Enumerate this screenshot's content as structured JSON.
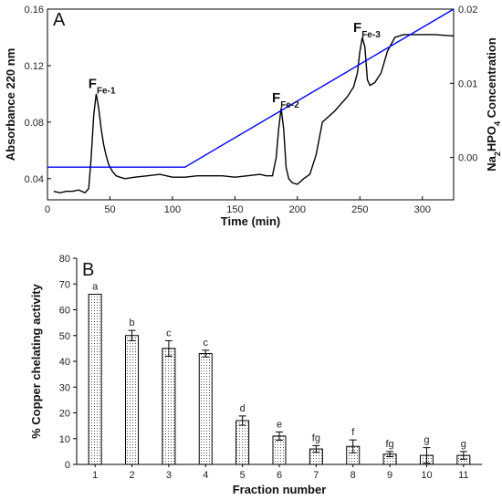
{
  "chart_data": [
    {
      "type": "line",
      "panel_label": "A",
      "xlabel": "Time (min)",
      "ylabel": "Absorbance 220 nm",
      "y2label_parts": [
        "Na",
        "2",
        "HPO",
        "4",
        " Concentration"
      ],
      "xlim": [
        0,
        325
      ],
      "ylim": [
        0.025,
        0.16
      ],
      "y2lim": [
        -0.0057,
        0.02
      ],
      "xticks": [
        0,
        50,
        100,
        150,
        200,
        250,
        300
      ],
      "yticks": [
        0.04,
        0.08,
        0.12,
        0.16
      ],
      "ytick_labels": [
        "0.04",
        "0.08",
        "0.12",
        "0.16"
      ],
      "y2ticks": [
        0.0,
        0.01,
        0.02
      ],
      "y2tick_labels": [
        "0.00",
        "0.01",
        "0.02"
      ],
      "colors": {
        "absorbance": "#000000",
        "gradient": "#0000ff"
      },
      "series": [
        {
          "axis": "left",
          "x": [
            5,
            10,
            15,
            20,
            25,
            30,
            33,
            35,
            37,
            39,
            41,
            43,
            45,
            47,
            49,
            52,
            55,
            58,
            62,
            70,
            80,
            90,
            100,
            110,
            120,
            130,
            140,
            150,
            160,
            170,
            175,
            180,
            183,
            185,
            187,
            189,
            191,
            193,
            196,
            200,
            205,
            210,
            215,
            220,
            230,
            240,
            245,
            248,
            250,
            252,
            254,
            256,
            258,
            262,
            267,
            272,
            278,
            285,
            295,
            310,
            325
          ],
          "y": [
            0.031,
            0.03,
            0.031,
            0.031,
            0.032,
            0.03,
            0.033,
            0.055,
            0.085,
            0.1,
            0.09,
            0.075,
            0.064,
            0.056,
            0.05,
            0.045,
            0.042,
            0.041,
            0.04,
            0.041,
            0.042,
            0.043,
            0.041,
            0.041,
            0.042,
            0.042,
            0.042,
            0.041,
            0.042,
            0.043,
            0.042,
            0.042,
            0.055,
            0.075,
            0.09,
            0.075,
            0.048,
            0.04,
            0.037,
            0.036,
            0.04,
            0.043,
            0.057,
            0.08,
            0.088,
            0.098,
            0.105,
            0.115,
            0.13,
            0.14,
            0.133,
            0.11,
            0.106,
            0.108,
            0.115,
            0.13,
            0.14,
            0.142,
            0.142,
            0.142,
            0.141
          ]
        },
        {
          "axis": "right",
          "x": [
            0,
            110,
            325
          ],
          "y": [
            -0.0013,
            -0.0013,
            0.02
          ]
        }
      ],
      "annotations": [
        {
          "label": "F",
          "sub": "Fe-1",
          "x": 40,
          "y": 0.104
        },
        {
          "label": "F",
          "sub": "Fe-2",
          "x": 187,
          "y": 0.094
        },
        {
          "label": "F",
          "sub": "Fe-3",
          "x": 252,
          "y": 0.144
        }
      ]
    },
    {
      "type": "bar",
      "panel_label": "B",
      "xlabel": "Fraction number",
      "ylabel": "% Copper chelating activity",
      "ylim": [
        0,
        80
      ],
      "yticks": [
        0,
        10,
        20,
        30,
        40,
        50,
        60,
        70,
        80
      ],
      "categories": [
        "1",
        "2",
        "3",
        "4",
        "5",
        "6",
        "7",
        "8",
        "9",
        "10",
        "11"
      ],
      "values": [
        66,
        50,
        45,
        43,
        17,
        11,
        6,
        7,
        4,
        3.5,
        3.5
      ],
      "errors": [
        0,
        2,
        3,
        1.3,
        1.8,
        1.6,
        1.3,
        2.5,
        1,
        3,
        1.5
      ],
      "letters": [
        "a",
        "b",
        "c",
        "c",
        "d",
        "e",
        "fg",
        "f",
        "fg",
        "g",
        "g"
      ],
      "bar_fill": "dotted"
    }
  ]
}
